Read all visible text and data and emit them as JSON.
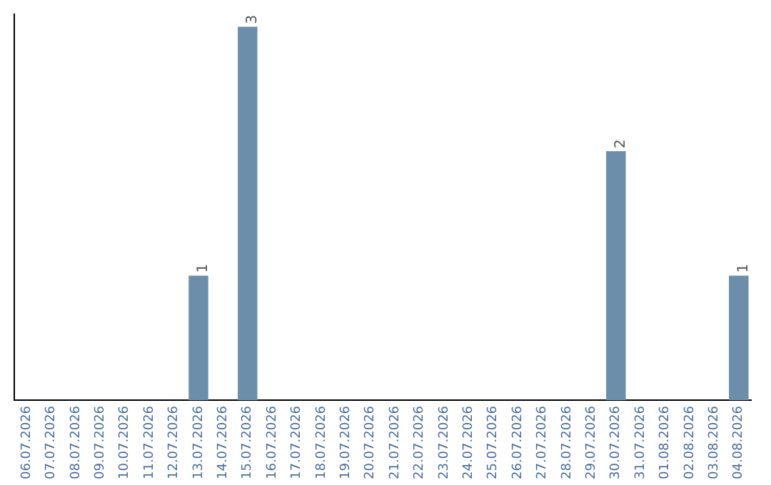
{
  "chart_data": {
    "type": "bar",
    "categories": [
      "06.07.2026",
      "07.07.2026",
      "08.07.2026",
      "09.07.2026",
      "10.07.2026",
      "11.07.2026",
      "12.07.2026",
      "13.07.2026",
      "14.07.2026",
      "15.07.2026",
      "16.07.2026",
      "17.07.2026",
      "18.07.2026",
      "19.07.2026",
      "20.07.2026",
      "21.07.2026",
      "22.07.2026",
      "23.07.2026",
      "24.07.2026",
      "25.07.2026",
      "26.07.2026",
      "27.07.2026",
      "28.07.2026",
      "29.07.2026",
      "30.07.2026",
      "31.07.2026",
      "01.08.2026",
      "02.08.2026",
      "03.08.2026",
      "04.08.2026"
    ],
    "values": [
      0,
      0,
      0,
      0,
      0,
      0,
      0,
      1,
      0,
      3,
      0,
      0,
      0,
      0,
      0,
      0,
      0,
      0,
      0,
      0,
      0,
      0,
      0,
      0,
      2,
      0,
      0,
      0,
      0,
      1
    ],
    "value_labels": [
      null,
      null,
      null,
      null,
      null,
      null,
      null,
      "1",
      null,
      "3",
      null,
      null,
      null,
      null,
      null,
      null,
      null,
      null,
      null,
      null,
      null,
      null,
      null,
      null,
      "2",
      null,
      null,
      null,
      null,
      "1"
    ],
    "color": "#6d8eab",
    "ylim": [
      0,
      3.1
    ],
    "grid": false,
    "legend": false,
    "tick_labels": "x"
  }
}
